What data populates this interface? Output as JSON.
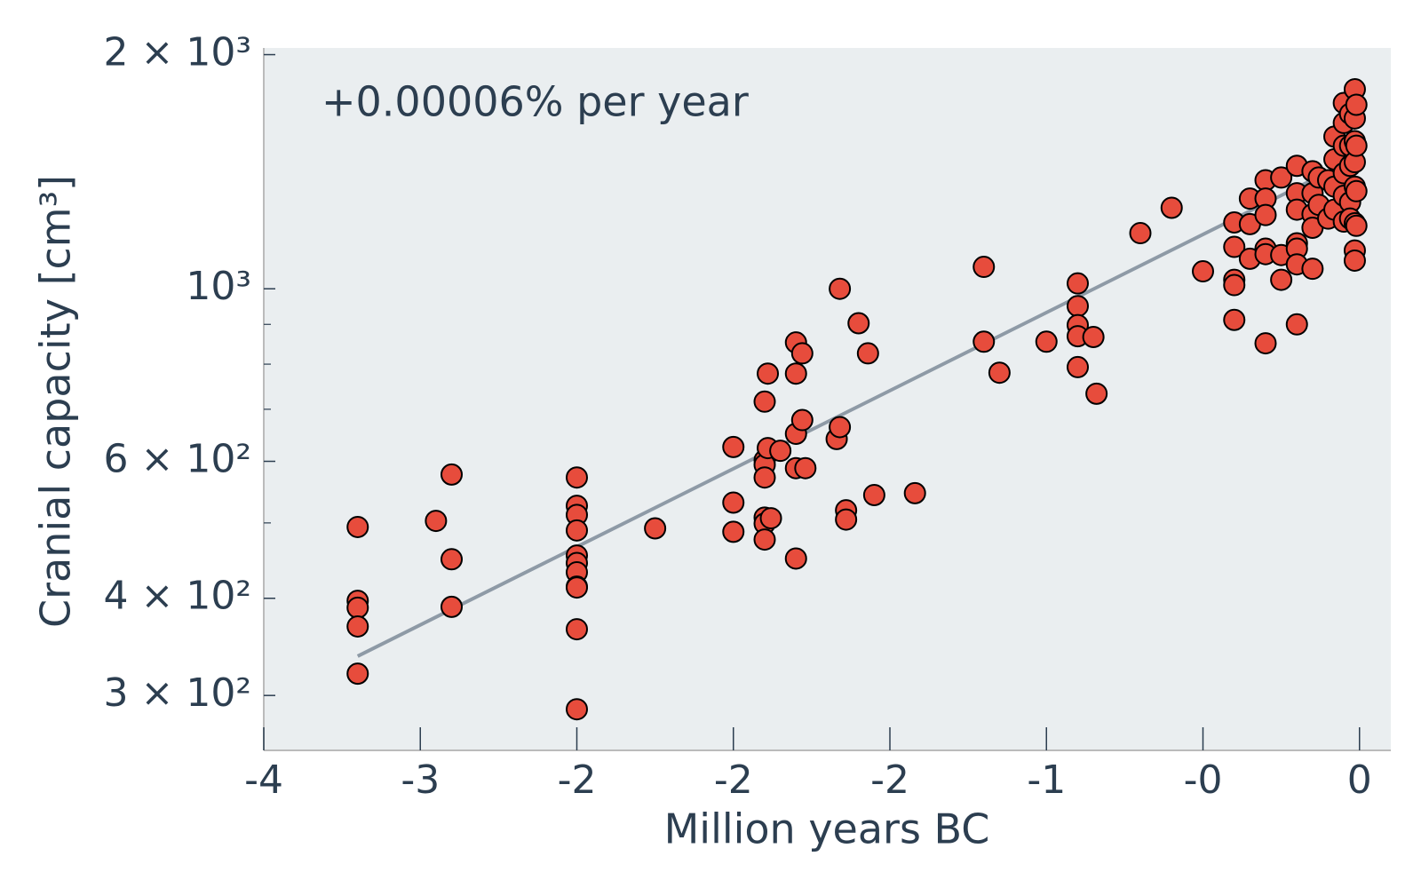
{
  "chart_data": {
    "type": "scatter",
    "annotation": "+0.00006% per year",
    "xlabel": "Million years BC",
    "ylabel": "Cranial capacity [cm³]",
    "yscale": "log",
    "color": "#e74c3c",
    "background": "#eaeef0",
    "xlim": [
      -3.5,
      0.1
    ],
    "ylim": [
      255,
      2040
    ],
    "xticks": [
      {
        "value": -3.5,
        "label": "-4"
      },
      {
        "value": -3,
        "label": "-3"
      },
      {
        "value": -2.5,
        "label": "-2"
      },
      {
        "value": -2,
        "label": "-2"
      },
      {
        "value": -1.5,
        "label": "-2"
      },
      {
        "value": -1,
        "label": "-1"
      },
      {
        "value": -0.5,
        "label": "-0"
      },
      {
        "value": 0,
        "label": "0"
      }
    ],
    "yticks": [
      {
        "value": 300,
        "label": "3 × 10²"
      },
      {
        "value": 400,
        "label": "4 × 10²"
      },
      {
        "value": 600,
        "label": "6 × 10²"
      },
      {
        "value": 1000,
        "label": "10³"
      },
      {
        "value": 2000,
        "label": "2 × 10³"
      }
    ],
    "yminorticks": [
      500,
      700,
      800,
      900
    ],
    "trend": {
      "x": [
        -3.2,
        0
      ],
      "values": [
        337,
        1480
      ],
      "color": "#8e9aa6"
    },
    "x": [
      -3.2,
      -3.2,
      -3.2,
      -3.2,
      -3.2,
      -2.95,
      -2.9,
      -2.9,
      -2.9,
      -2.5,
      -2.5,
      -2.5,
      -2.5,
      -2.5,
      -2.5,
      -2.5,
      -2.5,
      -2.5,
      -2.5,
      -2.5,
      -2.25,
      -2.0,
      -2.0,
      -2.0,
      -1.9,
      -1.89,
      -1.9,
      -1.9,
      -1.9,
      -1.9,
      -1.9,
      -1.9,
      -1.89,
      -1.88,
      -1.85,
      -1.8,
      -1.8,
      -1.8,
      -1.8,
      -1.8,
      -1.78,
      -1.78,
      -1.77,
      -1.67,
      -1.66,
      -1.66,
      -1.64,
      -1.64,
      -1.6,
      -1.57,
      -1.55,
      -1.42,
      -1.2,
      -1.2,
      -1.15,
      -1.0,
      -0.9,
      -0.9,
      -0.9,
      -0.9,
      -0.9,
      -0.85,
      -0.84,
      -0.7,
      -0.6,
      -0.5,
      -0.4,
      -0.4,
      -0.4,
      -0.4,
      -0.4,
      -0.35,
      -0.35,
      -0.35,
      -0.3,
      -0.3,
      -0.3,
      -0.3,
      -0.3,
      -0.3,
      -0.25,
      -0.25,
      -0.2,
      -0.2,
      -0.2,
      -0.2,
      -0.2,
      -0.2,
      -0.2,
      -0.25,
      -0.15,
      -0.15,
      -0.15,
      -0.15,
      -0.15,
      -0.13,
      -0.13,
      -0.1,
      -0.1,
      -0.08,
      -0.08,
      -0.08,
      -0.08,
      -0.05,
      -0.05,
      -0.05,
      -0.05,
      -0.05,
      -0.05,
      -0.03,
      -0.03,
      -0.03,
      -0.03,
      -0.03,
      -0.015,
      -0.015,
      -0.015,
      -0.015,
      -0.015,
      -0.015,
      -0.015,
      -0.015,
      -0.01,
      -0.01,
      -0.01,
      -0.01
    ],
    "values": [
      494,
      397,
      389,
      368,
      320,
      503,
      577,
      449,
      390,
      572,
      526,
      512,
      489,
      454,
      444,
      432,
      414,
      413,
      365,
      288,
      492,
      626,
      531,
      487,
      716,
      778,
      602,
      594,
      572,
      508,
      499,
      476,
      624,
      507,
      619,
      853,
      778,
      651,
      588,
      450,
      678,
      826,
      588,
      641,
      664,
      1000,
      519,
      505,
      903,
      826,
      543,
      546,
      1067,
      855,
      780,
      855,
      1016,
      950,
      898,
      869,
      793,
      867,
      733,
      1179,
      1271,
      1053,
      1217,
      1132,
      1027,
      1011,
      912,
      1211,
      1306,
      1093,
      1379,
      1306,
      1244,
      1126,
      1108,
      851,
      1390,
      1105,
      1439,
      1327,
      1264,
      1144,
      1126,
      1075,
      900,
      1027,
      1416,
      1327,
      1247,
      1198,
      1061,
      1390,
      1282,
      1379,
      1231,
      1569,
      1467,
      1353,
      1264,
      1733,
      1634,
      1527,
      1408,
      1317,
      1220,
      1679,
      1527,
      1439,
      1292,
      1231,
      1805,
      1656,
      1548,
      1455,
      1353,
      1214,
      1120,
      1087,
      1724,
      1527,
      1335,
      1205
    ]
  }
}
